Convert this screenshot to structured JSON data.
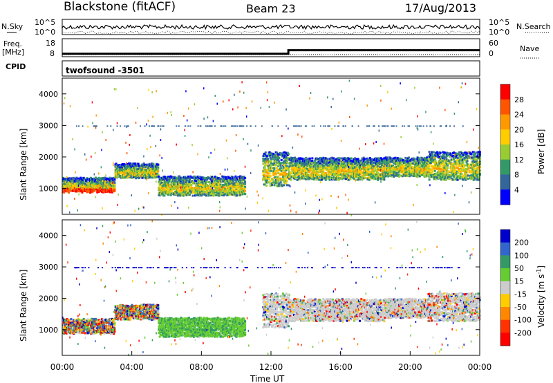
{
  "header": {
    "station": "Blackstone (fitACF)",
    "beam": "Beam 23",
    "date": "17/Aug/2013"
  },
  "chart_data": [
    {
      "type": "line",
      "name": "noise",
      "left_label": "N.Sky",
      "right_label": "N.Search",
      "left_ticks": [
        "10^5",
        "10^0"
      ],
      "right_ticks": [
        "10^5",
        "10^0"
      ]
    },
    {
      "type": "line",
      "name": "frequency-nave",
      "left_label_top": "Freq.",
      "left_label_bottom": "[MHz]",
      "right_label": "Nave",
      "left_ticks": [
        "18",
        "8"
      ],
      "right_ticks": [
        "60",
        "0"
      ],
      "cpid_label": "CPID",
      "cpid_value": "twofsound  -3501",
      "freq_step": {
        "low": 10,
        "high": 12,
        "switch_time_hours": 13.0,
        "ylim": [
          8,
          18
        ]
      }
    },
    {
      "type": "heatmap",
      "name": "power",
      "ylabel": "Slant Range [km]",
      "y_ticks": [
        1000,
        2000,
        3000,
        4000
      ],
      "ylim": [
        180,
        4500
      ],
      "xlim": [
        0,
        24
      ],
      "colorbar_label": "Power [dB]",
      "colorbar_ticks": [
        "28",
        "24",
        "20",
        "16",
        "12",
        "8",
        "4"
      ],
      "colorbar_colors": [
        "#ff0000",
        "#ff5500",
        "#ff9900",
        "#ffcc00",
        "#99cc33",
        "#339966",
        "#336699",
        "#0000ff"
      ],
      "bands": [
        {
          "t0": 0.0,
          "t1": 3.0,
          "r0": 900,
          "r1": 1350
        },
        {
          "t0": 3.0,
          "t1": 5.5,
          "r0": 1350,
          "r1": 1800
        },
        {
          "t0": 5.5,
          "t1": 10.5,
          "r0": 800,
          "r1": 1400
        },
        {
          "t0": 11.5,
          "t1": 13.0,
          "r0": 1100,
          "r1": 2200
        },
        {
          "t0": 13.0,
          "t1": 18.5,
          "r0": 1300,
          "r1": 2000
        },
        {
          "t0": 18.5,
          "t1": 21.0,
          "r0": 1400,
          "r1": 2000
        },
        {
          "t0": 21.0,
          "t1": 24.0,
          "r0": 1300,
          "r1": 2200
        }
      ]
    },
    {
      "type": "heatmap",
      "name": "velocity",
      "ylabel": "Slant Range [km]",
      "y_ticks": [
        1000,
        2000,
        3000,
        4000
      ],
      "ylim": [
        180,
        4500
      ],
      "xlim": [
        0,
        24
      ],
      "x_ticks": [
        "00:00",
        "04:00",
        "08:00",
        "12:00",
        "16:00",
        "20:00",
        "00:00"
      ],
      "xlabel": "Time UT",
      "colorbar_label": "Velocity [m s",
      "colorbar_label_sup": "-1",
      "colorbar_label_end": "]",
      "colorbar_ticks": [
        "200",
        "100",
        "50",
        "15",
        "-15",
        "-50",
        "-100",
        "-200"
      ],
      "colorbar_colors": [
        "#0000cc",
        "#3366cc",
        "#339966",
        "#66cc33",
        "#cccccc",
        "#ffcc00",
        "#ff8800",
        "#ff3300",
        "#ff0000"
      ]
    }
  ]
}
